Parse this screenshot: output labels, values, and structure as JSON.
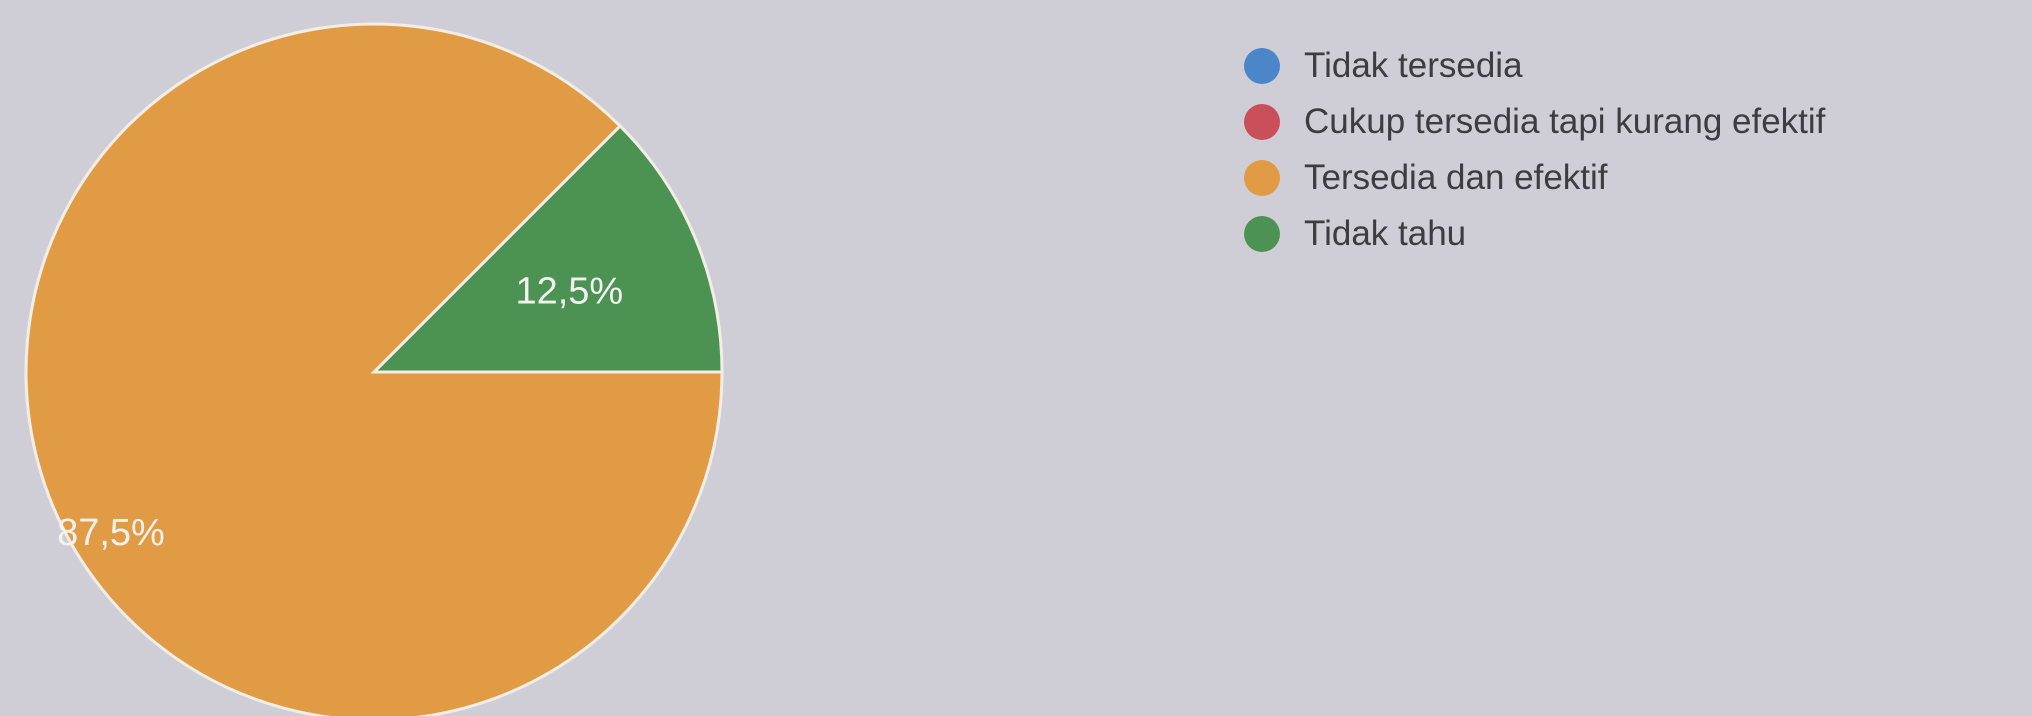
{
  "chart_data": {
    "type": "pie",
    "series": [
      {
        "name": "Tidak tersedia",
        "value": 0,
        "color": "#4a86c8"
      },
      {
        "name": "Cukup tersedia tapi kurang efektif",
        "value": 0,
        "color": "#c94f5a"
      },
      {
        "name": "Tersedia dan efektif",
        "value": 87.5,
        "color": "#e19b45",
        "label": "87,5%"
      },
      {
        "name": "Tidak tahu",
        "value": 12.5,
        "color": "#4c9252",
        "label": "12,5%"
      }
    ],
    "legend_position": "right"
  }
}
